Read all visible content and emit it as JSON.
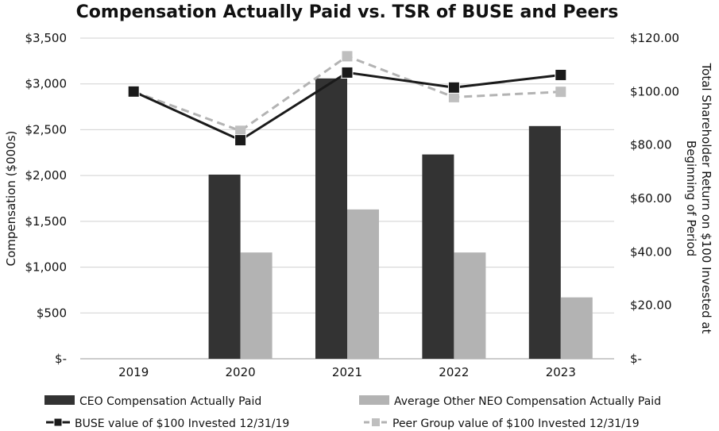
{
  "chart_data": {
    "type": "bar+line",
    "title": "Compensation Actually Paid vs. TSR of BUSE and Peers",
    "categories": [
      "2019",
      "2020",
      "2021",
      "2022",
      "2023"
    ],
    "left_axis": {
      "label": "Compensation ($000s)",
      "range": [
        0,
        3500
      ],
      "ticks": [
        0,
        500,
        1000,
        1500,
        2000,
        2500,
        3000,
        3500
      ],
      "tick_labels": [
        "$-",
        "$500",
        "$1,000",
        "$1,500",
        "$2,000",
        "$2,500",
        "$3,000",
        "$3,500"
      ]
    },
    "right_axis": {
      "label_line1": "Total Shareholder Return on $100 Invested at",
      "label_line2": "Beginning of Period",
      "range": [
        0,
        120
      ],
      "ticks": [
        0,
        20,
        40,
        60,
        80,
        100,
        120
      ],
      "tick_labels": [
        "$-",
        "$20.00",
        "$40.00",
        "$60.00",
        "$80.00",
        "$100.00",
        "$120.00"
      ]
    },
    "bar_series": [
      {
        "name": "CEO Compensation Actually Paid",
        "color": "#333333",
        "values": [
          0,
          2010,
          3060,
          2230,
          2540
        ]
      },
      {
        "name": "Average Other NEO Compensation Actually Paid",
        "color": "#b3b3b3",
        "values": [
          0,
          1160,
          1630,
          1160,
          670
        ]
      }
    ],
    "line_series": [
      {
        "name": "BUSE value of $100 Invested 12/31/19",
        "color": "#1a1a1a",
        "dashed": false,
        "values": [
          100.0,
          81.8,
          107.1,
          101.5,
          106.2
        ]
      },
      {
        "name": "Peer Group value of $100 Invested 12/31/19",
        "color": "#b3b3b3",
        "dashed": true,
        "values": [
          100.0,
          85.3,
          113.2,
          97.9,
          99.9
        ]
      }
    ],
    "grid": true,
    "legend_position": "bottom"
  }
}
